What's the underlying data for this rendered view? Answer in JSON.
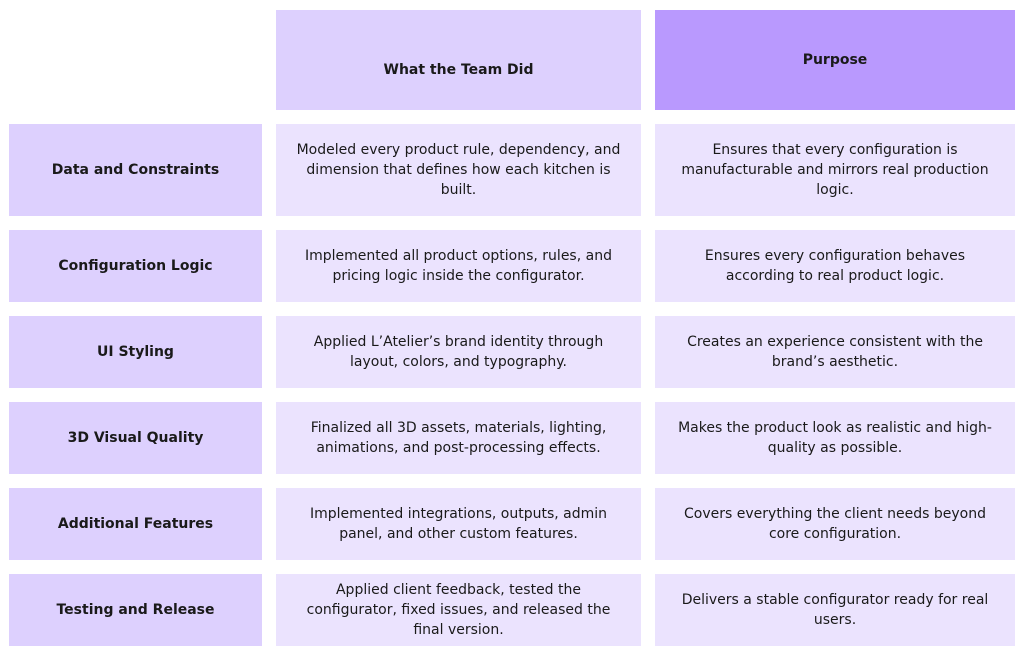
{
  "headers": {
    "what": "What the Team Did",
    "purpose": "Purpose"
  },
  "rows": [
    {
      "label": "Data and Constraints",
      "what": "Modeled every product rule, dependency, and dimension that defines how each kitchen is built.",
      "purpose": "Ensures that every configuration is manufacturable and mirrors real production logic."
    },
    {
      "label": "Configuration Logic",
      "what": "Implemented all product options, rules, and pricing logic inside the configurator.",
      "purpose": "Ensures every configuration behaves according to real product logic."
    },
    {
      "label": "UI Styling",
      "what": "Applied L’Atelier’s brand identity through layout, colors, and typography.",
      "purpose": "Creates an experience consistent with the brand’s aesthetic."
    },
    {
      "label": "3D Visual Quality",
      "what": "Finalized all 3D assets, materials, lighting, animations, and post-processing effects.",
      "purpose": "Makes the product look as realistic and high-quality as possible."
    },
    {
      "label": "Additional Features",
      "what": "Implemented integrations, outputs, admin panel, and other custom features.",
      "purpose": "Covers everything the client needs beyond core configuration."
    },
    {
      "label": "Testing and Release",
      "what": "Applied client feedback, tested the configurator, fixed issues, and released the final version.",
      "purpose": "Delivers a stable configurator ready for real users."
    }
  ],
  "colors": {
    "header_what": "#ddd0fe",
    "header_purpose": "#b999fe",
    "row_label": "#ddd0fe",
    "body_cell": "#ebe3fe"
  }
}
